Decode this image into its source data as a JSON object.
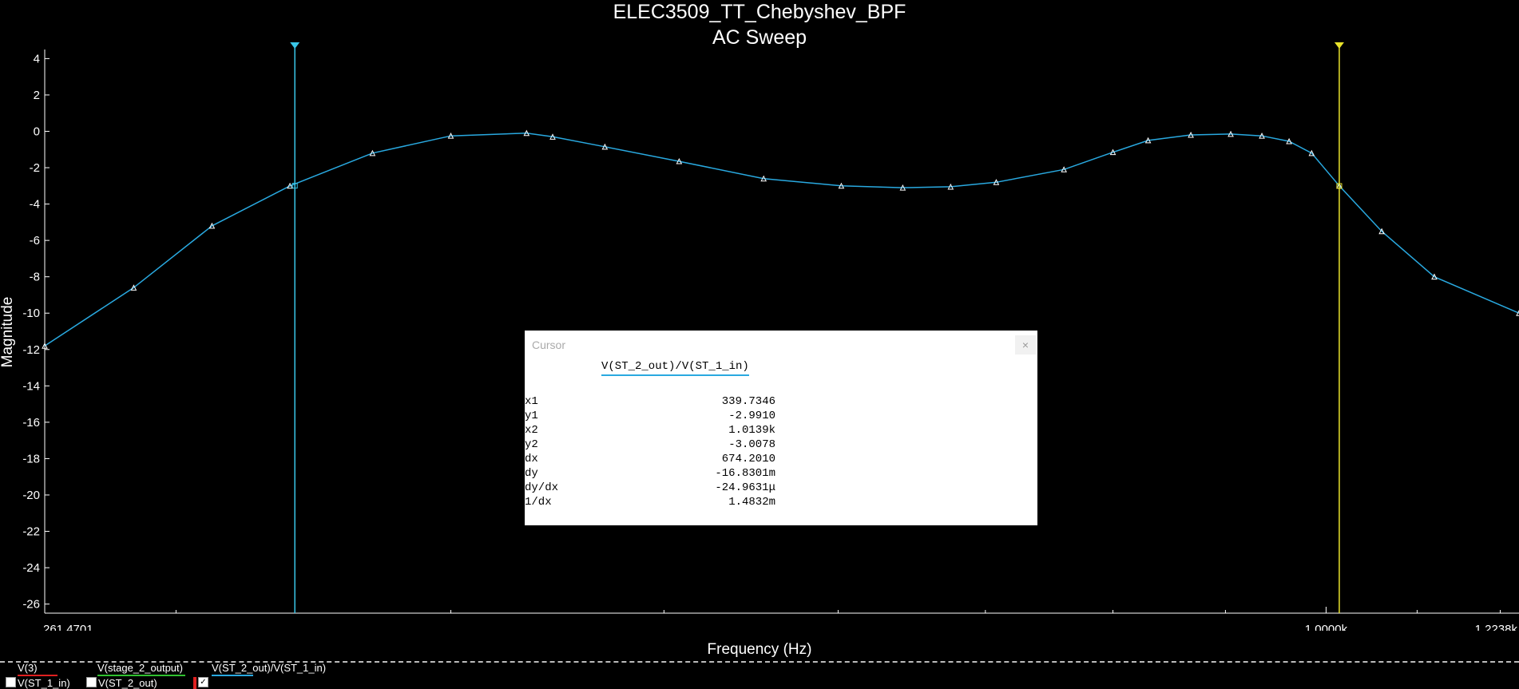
{
  "window": {
    "title": "ELEC3509_TT_Chebyshev_BPF",
    "subtitle": "AC Sweep"
  },
  "chart_data": {
    "type": "line",
    "title": "ELEC3509_TT_Chebyshev_BPF",
    "subtitle": "AC Sweep",
    "xlabel": "Frequency (Hz)",
    "ylabel": "Magnitude",
    "x_scale": "log",
    "xlim": [
      261.4701,
      1223.8
    ],
    "ylim": [
      -26.5,
      4.5
    ],
    "x_tick_labels": [
      "261.4701",
      "1.0000k",
      "1.2238k"
    ],
    "y_ticks": [
      4,
      2,
      0,
      -2,
      -4,
      -6,
      -8,
      -10,
      -12,
      -14,
      -16,
      -18,
      -20,
      -22,
      -24,
      -26
    ],
    "grid": false,
    "series": [
      {
        "name": "V(ST_2_out)/V(ST_1_in)",
        "color": "#29a9e0",
        "x": [
          261.4701,
          287.0,
          311.5,
          338.0,
          368.5,
          400.0,
          433.0,
          445.0,
          470.0,
          508.0,
          555.0,
          602.0,
          642.0,
          675.0,
          708.0,
          760.0,
          800.0,
          830.0,
          868.0,
          905.0,
          935.0,
          962.0,
          985.0,
          1013.9,
          1060.0,
          1120.0,
          1223.8
        ],
        "y": [
          -11.8,
          -8.6,
          -5.2,
          -3.0,
          -1.2,
          -0.25,
          -0.1,
          -0.3,
          -0.85,
          -1.65,
          -2.6,
          -3.0,
          -3.1,
          -3.05,
          -2.8,
          -2.1,
          -1.15,
          -0.5,
          -0.2,
          -0.15,
          -0.25,
          -0.55,
          -1.2,
          -3.0,
          -5.5,
          -8.0,
          -10.0
        ]
      }
    ],
    "cursors": [
      {
        "id": "1",
        "x": 339.7346,
        "y": -2.991,
        "color": "#39c6e8"
      },
      {
        "id": "2",
        "x": 1013.9,
        "y": -3.0078,
        "color": "#e8e22a"
      }
    ]
  },
  "cursor_dialog": {
    "title": "Cursor",
    "close_glyph": "×",
    "trace_name": "V(ST_2_out)/V(ST_1_in)",
    "rows": [
      {
        "label": "x1",
        "value": "339.7346"
      },
      {
        "label": "y1",
        "value": "-2.9910"
      },
      {
        "label": "x2",
        "value": "1.0139k"
      },
      {
        "label": "y2",
        "value": "-3.0078"
      },
      {
        "label": "dx",
        "value": "674.2010"
      },
      {
        "label": "dy",
        "value": "-16.8301m"
      },
      {
        "label": "dy/dx",
        "value": "-24.9631μ"
      },
      {
        "label": "1/dx",
        "value": "1.4832m"
      }
    ]
  },
  "legend": {
    "row1": [
      {
        "label": "V(3)",
        "color": "#e02020"
      },
      {
        "label": "V(stage_2_output)",
        "color": "#30c030"
      },
      {
        "label": "V(ST_2_out)/V(ST_1_in)",
        "color": "#29a9e0"
      }
    ],
    "row2": [
      {
        "label": "V(ST_1_in)",
        "checked": false
      },
      {
        "label": "V(ST_2_out)",
        "checked": false
      },
      {
        "label": "",
        "checked": true
      }
    ]
  }
}
